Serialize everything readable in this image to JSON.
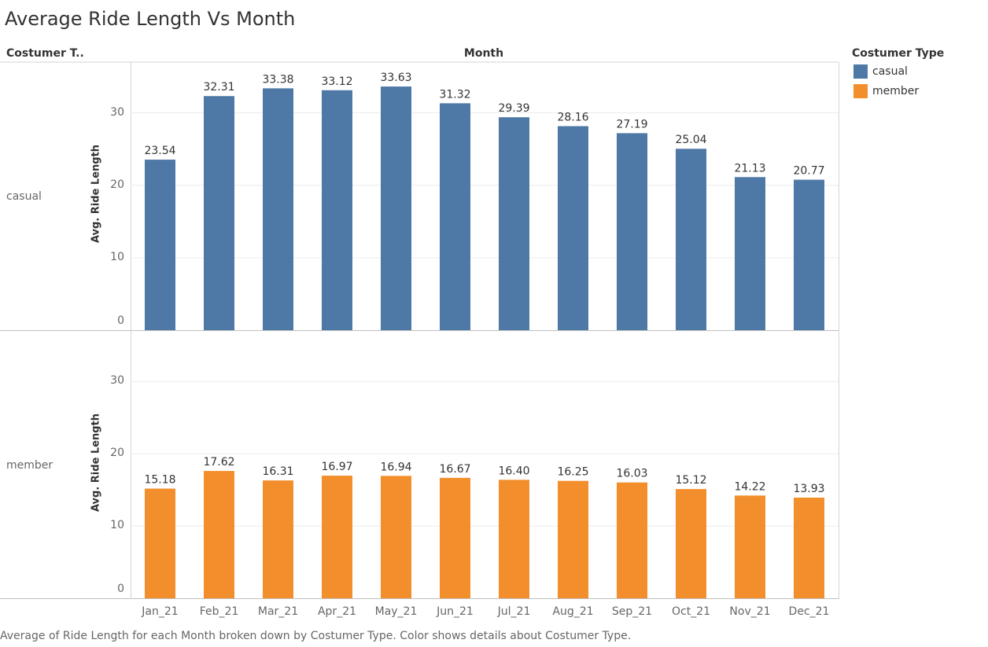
{
  "title": "Average Ride Length Vs Month",
  "headers": {
    "row_dimension": "Costumer T..",
    "column_dimension": "Month"
  },
  "legend": {
    "title": "Costumer Type",
    "items": [
      {
        "label": "casual",
        "color": "#4e79a7"
      },
      {
        "label": "member",
        "color": "#f28e2b"
      }
    ]
  },
  "footer": "Average of Ride Length for each Month broken down by Costumer Type.  Color shows details about Costumer Type.",
  "chart_data": {
    "type": "bar",
    "title": "Average Ride Length Vs Month",
    "xlabel": "",
    "ylabel": "Avg. Ride Length",
    "ylim": [
      0,
      37
    ],
    "yticks": [
      0,
      10,
      20,
      30
    ],
    "grid": true,
    "legend_position": "right",
    "categories": [
      "Jan_21",
      "Feb_21",
      "Mar_21",
      "Apr_21",
      "May_21",
      "Jun_21",
      "Jul_21",
      "Aug_21",
      "Sep_21",
      "Oct_21",
      "Nov_21",
      "Dec_21"
    ],
    "series": [
      {
        "name": "casual",
        "color": "#4e79a7",
        "values": [
          23.54,
          32.31,
          33.38,
          33.12,
          33.63,
          31.32,
          29.39,
          28.16,
          27.19,
          25.04,
          21.13,
          20.77
        ],
        "labels": [
          "23.54",
          "32.31",
          "33.38",
          "33.12",
          "33.63",
          "31.32",
          "29.39",
          "28.16",
          "27.19",
          "25.04",
          "21.13",
          "20.77"
        ]
      },
      {
        "name": "member",
        "color": "#f28e2b",
        "values": [
          15.18,
          17.62,
          16.31,
          16.97,
          16.94,
          16.67,
          16.4,
          16.25,
          16.03,
          15.12,
          14.22,
          13.93
        ],
        "labels": [
          "15.18",
          "17.62",
          "16.31",
          "16.97",
          "16.94",
          "16.67",
          "16.40",
          "16.25",
          "16.03",
          "15.12",
          "14.22",
          "13.93"
        ]
      }
    ]
  }
}
